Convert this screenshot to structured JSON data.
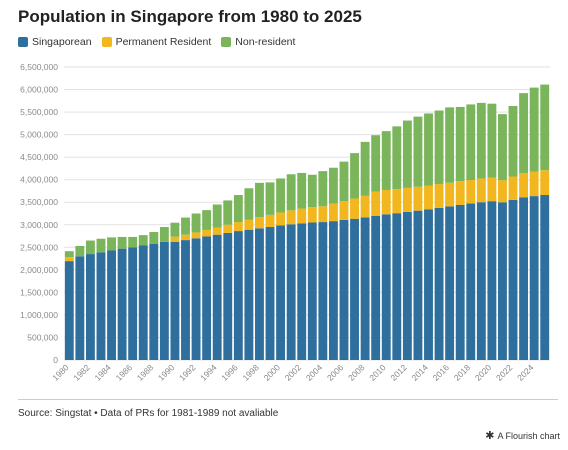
{
  "title": "Population in Singapore from 1980 to 2025",
  "legend": [
    {
      "label": "Singaporean",
      "color": "#2E6F9E"
    },
    {
      "label": "Permanent Resident",
      "color": "#F2B71F"
    },
    {
      "label": "Non-resident",
      "color": "#7AB55C"
    }
  ],
  "source": "Source: Singstat • Data of PRs for 1981-1989 not avaliable",
  "credit": "A Flourish chart",
  "credit_icon": "asterisk-icon",
  "chart_data": {
    "type": "bar",
    "stacked": true,
    "ylim": [
      0,
      6500000
    ],
    "yticks": [
      0,
      500000,
      1000000,
      1500000,
      2000000,
      2500000,
      3000000,
      3500000,
      4000000,
      4500000,
      5000000,
      5500000,
      6000000,
      6500000
    ],
    "ytick_labels": [
      "0",
      "500,000",
      "1,000,000",
      "1,500,000",
      "2,000,000",
      "2,500,000",
      "3,000,000",
      "3,500,000",
      "4,000,000",
      "4,500,000",
      "5,000,000",
      "5,500,000",
      "6,000,000",
      "6,500,000"
    ],
    "xtick_labels": [
      "1980",
      "1982",
      "1984",
      "1986",
      "1988",
      "1990",
      "1992",
      "1994",
      "1996",
      "1998",
      "2000",
      "2002",
      "2004",
      "2006",
      "2008",
      "2010",
      "2012",
      "2014",
      "2016",
      "2018",
      "2020",
      "2022",
      "2024"
    ],
    "grid": true,
    "categories": [
      "1980",
      "1981",
      "1982",
      "1983",
      "1984",
      "1985",
      "1986",
      "1987",
      "1988",
      "1989",
      "1990",
      "1991",
      "1992",
      "1993",
      "1994",
      "1995",
      "1996",
      "1997",
      "1998",
      "1999",
      "2000",
      "2001",
      "2002",
      "2003",
      "2004",
      "2005",
      "2006",
      "2007",
      "2008",
      "2009",
      "2010",
      "2011",
      "2012",
      "2013",
      "2014",
      "2015",
      "2016",
      "2017",
      "2018",
      "2019",
      "2020",
      "2021",
      "2022",
      "2023",
      "2024",
      "2025"
    ],
    "series": [
      {
        "name": "Singaporean",
        "values": [
          2194000,
          2300000,
          2350000,
          2390000,
          2430000,
          2470000,
          2500000,
          2540000,
          2580000,
          2620000,
          2623000,
          2660000,
          2700000,
          2740000,
          2780000,
          2820000,
          2860000,
          2890000,
          2920000,
          2950000,
          2986000,
          3010000,
          3030000,
          3050000,
          3060000,
          3081000,
          3108000,
          3133000,
          3164000,
          3200000,
          3231000,
          3257000,
          3285000,
          3313000,
          3343000,
          3375000,
          3408000,
          3439000,
          3471000,
          3500000,
          3523000,
          3498000,
          3553000,
          3610000,
          3636000,
          3660000
        ]
      },
      {
        "name": "Permanent Resident",
        "values": [
          88000,
          0,
          0,
          0,
          0,
          0,
          0,
          0,
          0,
          0,
          112000,
          120000,
          130000,
          145000,
          160000,
          180000,
          200000,
          220000,
          250000,
          270000,
          287000,
          310000,
          330000,
          340000,
          350000,
          386000,
          418000,
          450000,
          478000,
          533000,
          541000,
          532000,
          533000,
          531000,
          527000,
          528000,
          524000,
          527000,
          522000,
          527000,
          521000,
          490000,
          518000,
          539000,
          545000,
          550000
        ]
      },
      {
        "name": "Non-resident",
        "values": [
          132000,
          230000,
          300000,
          300000,
          290000,
          260000,
          230000,
          230000,
          260000,
          330000,
          311000,
          380000,
          420000,
          440000,
          510000,
          540000,
          600000,
          700000,
          760000,
          720000,
          754000,
          800000,
          790000,
          720000,
          780000,
          798000,
          875000,
          1006000,
          1197000,
          1254000,
          1305000,
          1394000,
          1494000,
          1555000,
          1599000,
          1632000,
          1673000,
          1648000,
          1677000,
          1677000,
          1642000,
          1467000,
          1564000,
          1771000,
          1862000,
          1900000
        ]
      }
    ]
  }
}
